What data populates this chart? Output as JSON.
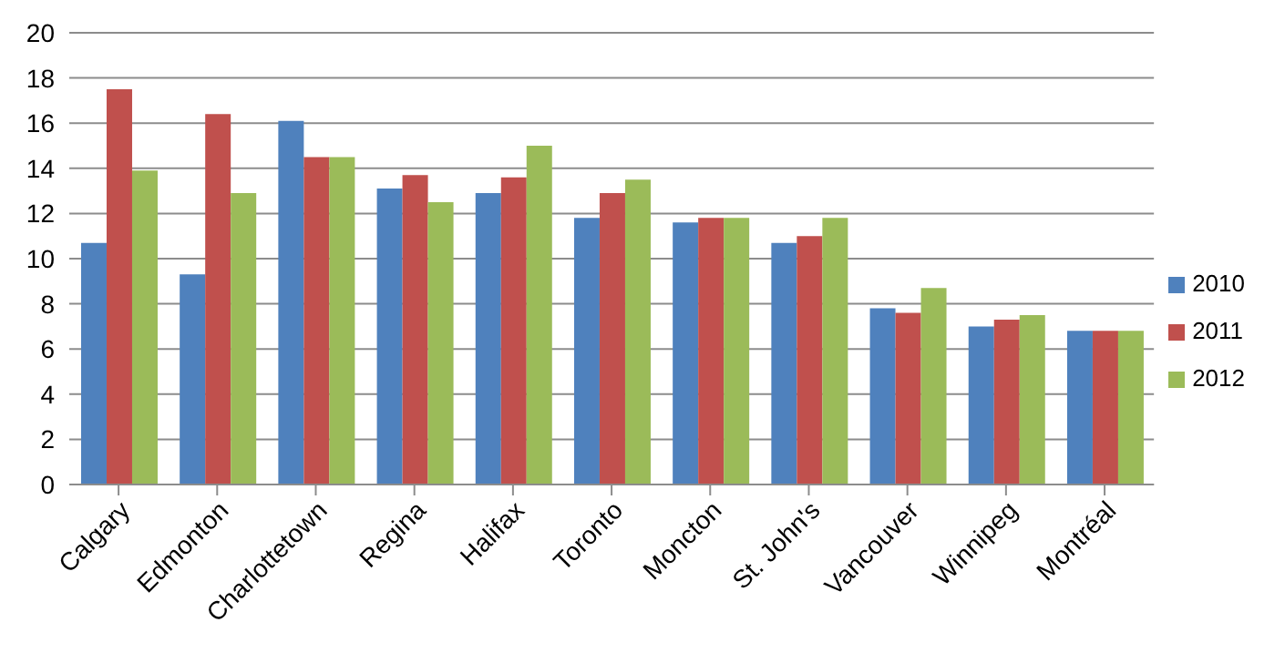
{
  "chart_data": {
    "type": "bar",
    "categories": [
      "Calgary",
      "Edmonton",
      "Charlottetown",
      "Regina",
      "Halifax",
      "Toronto",
      "Moncton",
      "St. John's",
      "Vancouver",
      "Winnipeg",
      "Montréal"
    ],
    "series": [
      {
        "name": "2010",
        "color": "#4f81bd",
        "values": [
          10.7,
          9.3,
          16.1,
          13.1,
          12.9,
          11.8,
          11.6,
          10.7,
          7.8,
          7.0,
          6.8
        ]
      },
      {
        "name": "2011",
        "color": "#c0504d",
        "values": [
          17.5,
          16.4,
          14.5,
          13.7,
          13.6,
          12.9,
          11.8,
          11.0,
          7.6,
          7.3,
          6.8
        ]
      },
      {
        "name": "2012",
        "color": "#9bbb59",
        "values": [
          13.9,
          12.9,
          14.5,
          12.5,
          15.0,
          13.5,
          11.8,
          11.8,
          8.7,
          7.5,
          6.8
        ]
      }
    ],
    "ylim": [
      0,
      20
    ],
    "yticks": [
      0,
      2,
      4,
      6,
      8,
      10,
      12,
      14,
      16,
      18,
      20
    ],
    "grid": "y",
    "legend": "right"
  }
}
